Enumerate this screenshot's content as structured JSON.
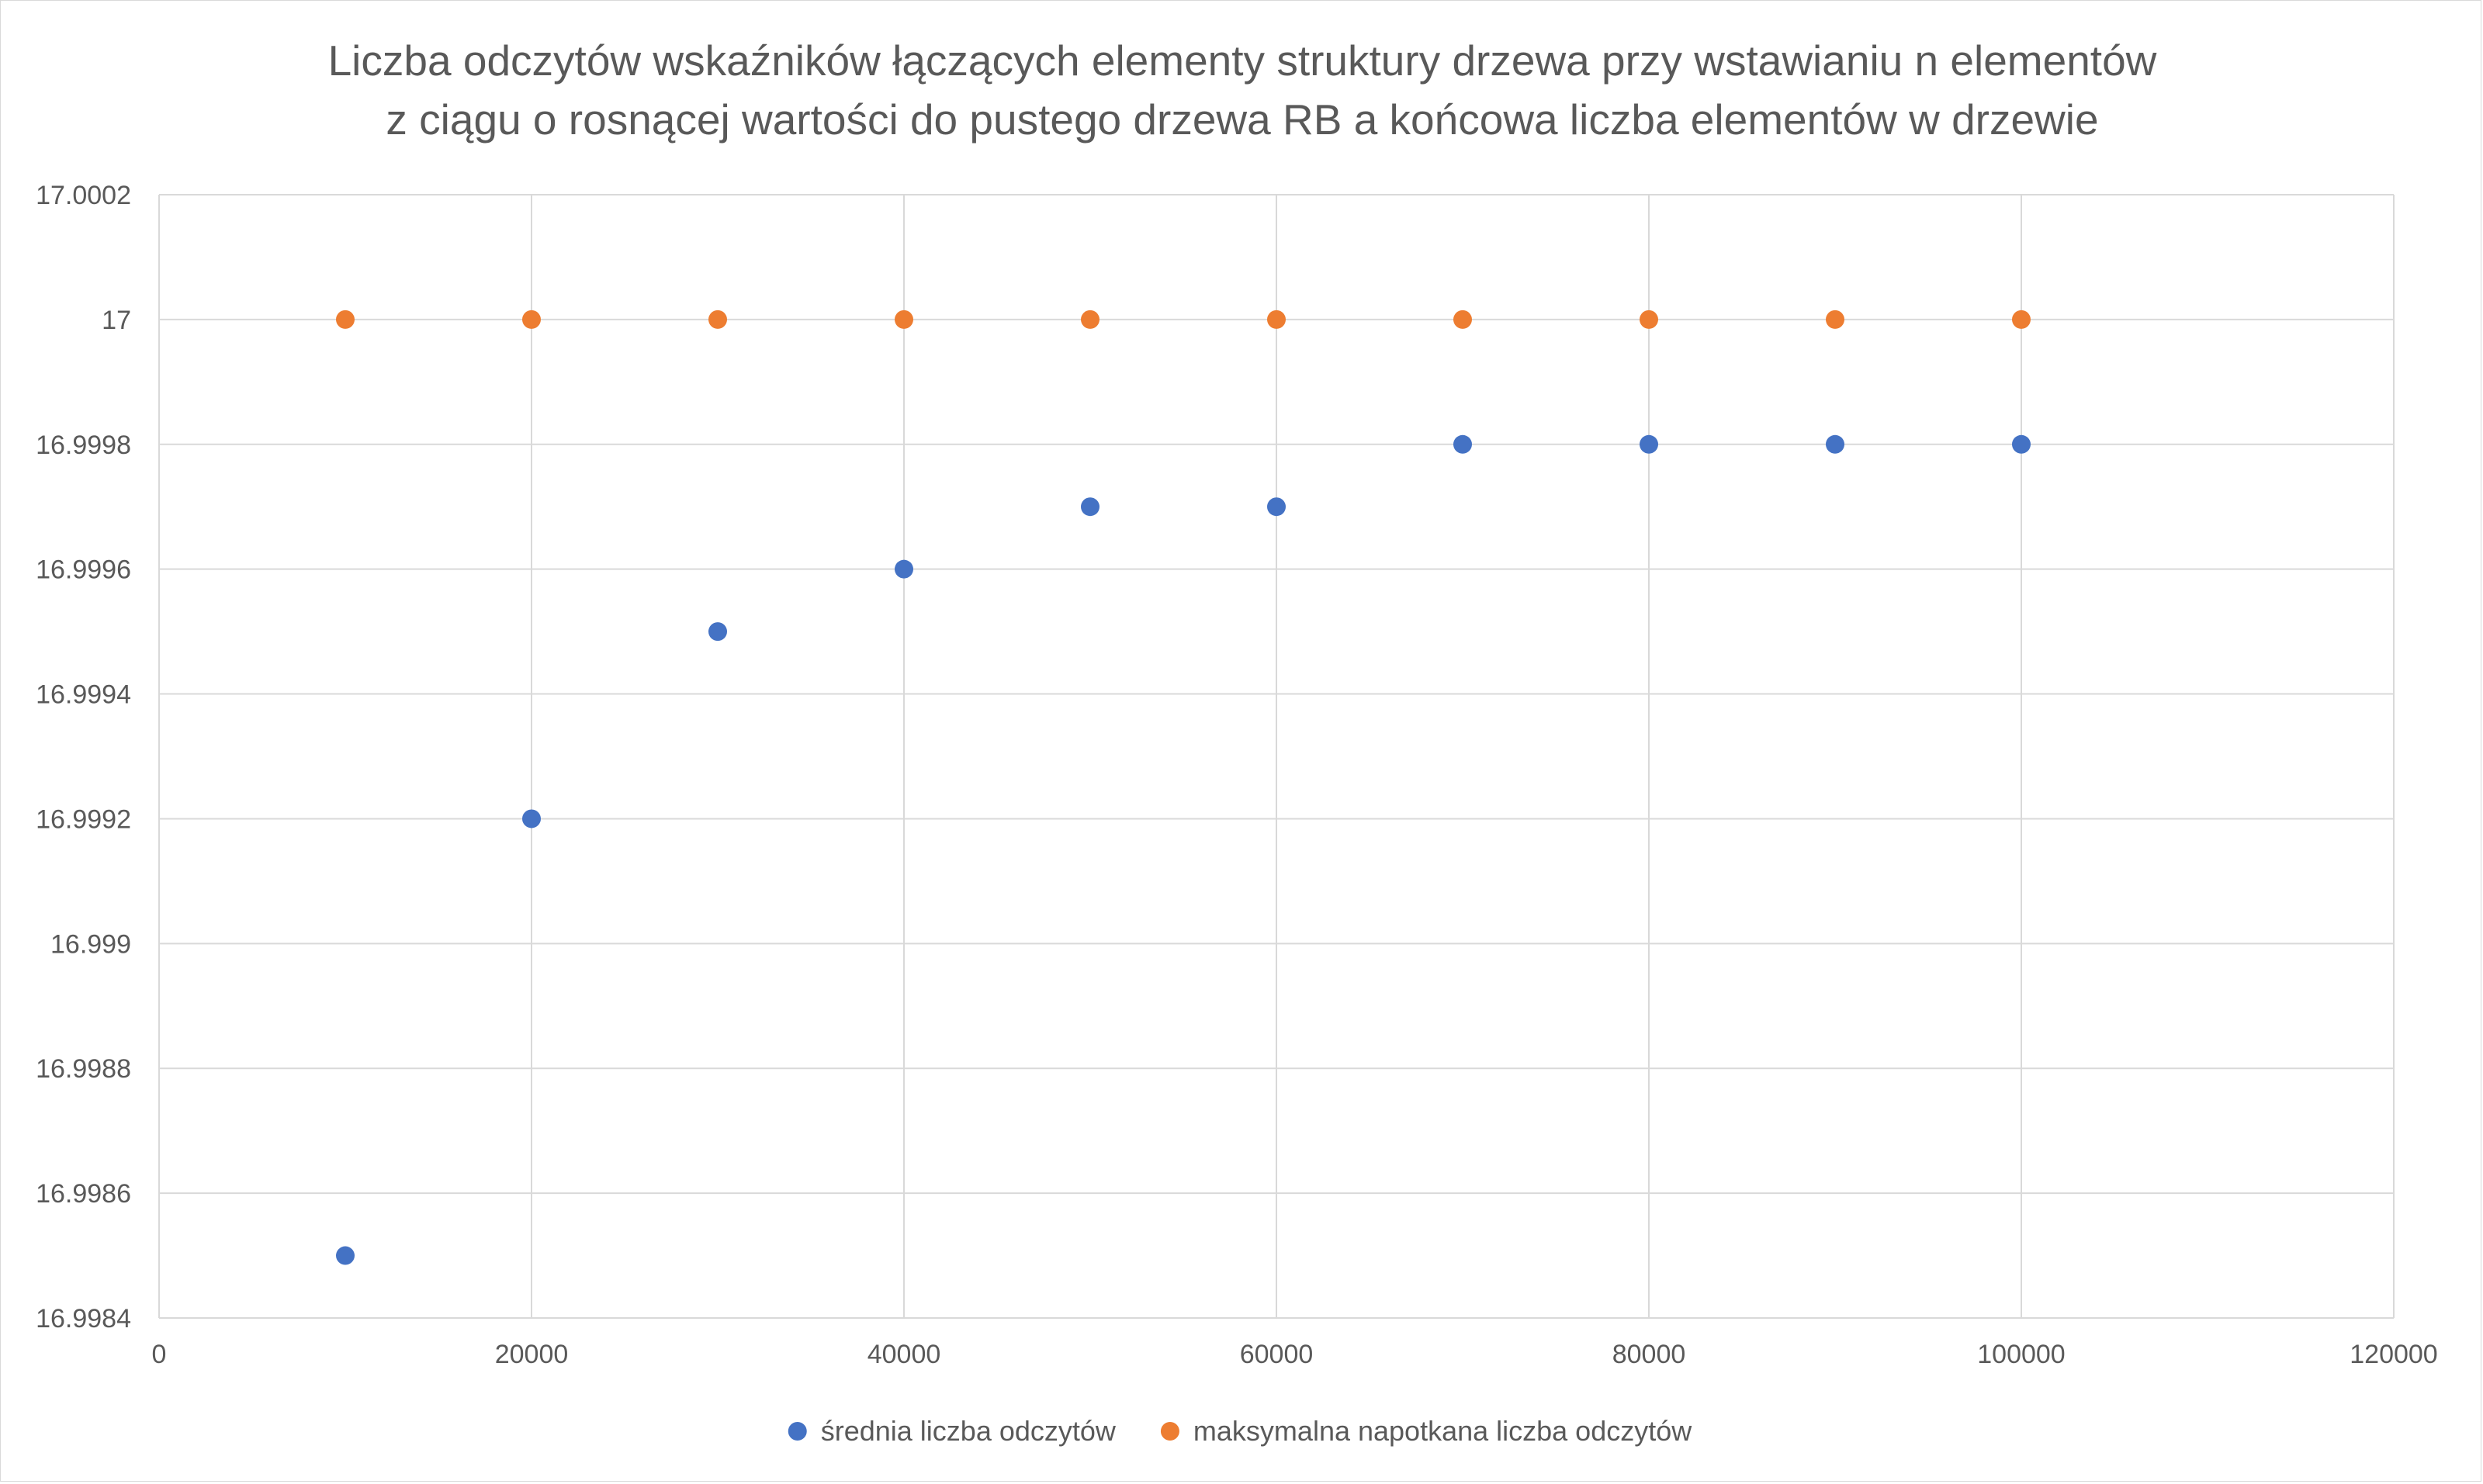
{
  "chart_data": {
    "type": "scatter",
    "title_lines": [
      "Liczba odczytów wskaźników łączących elementy struktury drzewa przy wstawianiu n elementów",
      "z ciągu o rosnącej wartości do pustego drzewa RB a końcowa liczba elementów w drzewie"
    ],
    "xlabel": "",
    "ylabel": "",
    "xlim": [
      0,
      120000
    ],
    "ylim": [
      16.9984,
      17.0002
    ],
    "x_ticks": [
      0,
      20000,
      40000,
      60000,
      80000,
      100000,
      120000
    ],
    "x_tick_labels": [
      "0",
      "20000",
      "40000",
      "60000",
      "80000",
      "100000",
      "120000"
    ],
    "y_ticks": [
      17.0002,
      17,
      16.9998,
      16.9996,
      16.9994,
      16.9992,
      16.999,
      16.9988,
      16.9986,
      16.9984
    ],
    "y_tick_labels": [
      "17.0002",
      "17",
      "16.9998",
      "16.9996",
      "16.9994",
      "16.9992",
      "16.999",
      "16.9988",
      "16.9986",
      "16.9984"
    ],
    "grid": true,
    "legend_position": "bottom",
    "series": [
      {
        "name": "średnia liczba odczytów",
        "color": "#4472c4",
        "x": [
          10000,
          20000,
          30000,
          40000,
          50000,
          60000,
          70000,
          80000,
          90000,
          100000
        ],
        "y": [
          16.9985,
          16.9992,
          16.9995,
          16.9996,
          16.9997,
          16.9997,
          16.9998,
          16.9998,
          16.9998,
          16.9998
        ]
      },
      {
        "name": "maksymalna napotkana liczba odczytów",
        "color": "#ed7d31",
        "x": [
          10000,
          20000,
          30000,
          40000,
          50000,
          60000,
          70000,
          80000,
          90000,
          100000
        ],
        "y": [
          17,
          17,
          17,
          17,
          17,
          17,
          17,
          17,
          17,
          17
        ]
      }
    ]
  }
}
